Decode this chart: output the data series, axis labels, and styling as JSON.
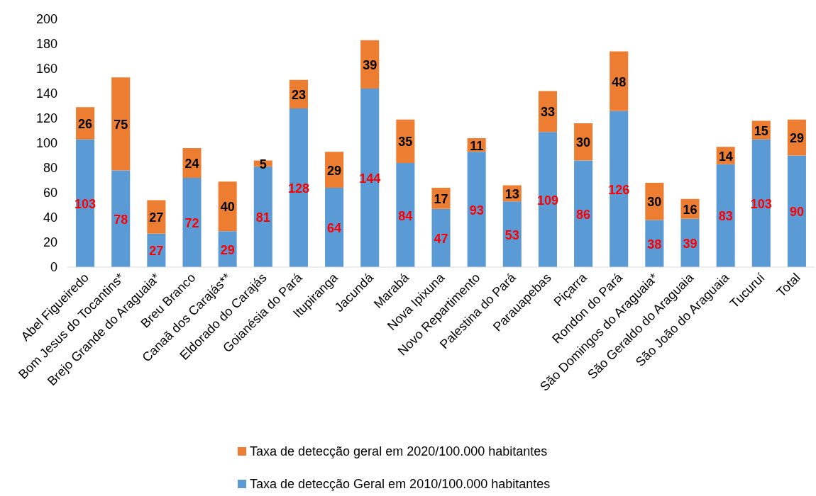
{
  "chart_data": {
    "type": "bar",
    "stacked": true,
    "data_labels": true,
    "legend": "bottom",
    "grid": false,
    "categories": [
      "Abel Figueiredo",
      "Bom Jesus do Tocantins*",
      "Brejo Grande do Araguaia*",
      "Breu Branco",
      "Canaã dos Carajás**",
      "Eldorado do Carajás",
      "Goianésia do Pará",
      "Itupiranga",
      "Jacundá",
      "Marabá",
      "Nova Ipixuna",
      "Novo Repartimento",
      "Palestina do Pará",
      "Parauapebas",
      "Piçarra",
      "Rondon do Pará",
      "São Domingos do Araguaia*",
      "São Geraldo do Araguaia",
      "São João do Araguaia",
      "Tucuruí",
      "Total"
    ],
    "series": [
      {
        "name": "Taxa de detecção Geral em 2010/100.000 habitantes",
        "color": "#5b9bd5",
        "values": [
          103,
          78,
          27,
          72,
          29,
          81,
          128,
          64,
          144,
          84,
          47,
          93,
          53,
          109,
          86,
          126,
          38,
          39,
          83,
          103,
          90
        ]
      },
      {
        "name": "Taxa de detecção geral em 2020/100.000 habitantes",
        "color": "#ed7d31",
        "values": [
          26,
          75,
          27,
          24,
          40,
          5,
          23,
          29,
          39,
          35,
          17,
          11,
          13,
          33,
          30,
          48,
          30,
          16,
          14,
          15,
          29
        ]
      }
    ],
    "ylim": [
      0,
      200
    ],
    "yticks": [
      0,
      20,
      40,
      60,
      80,
      100,
      120,
      140,
      160,
      180,
      200
    ]
  }
}
